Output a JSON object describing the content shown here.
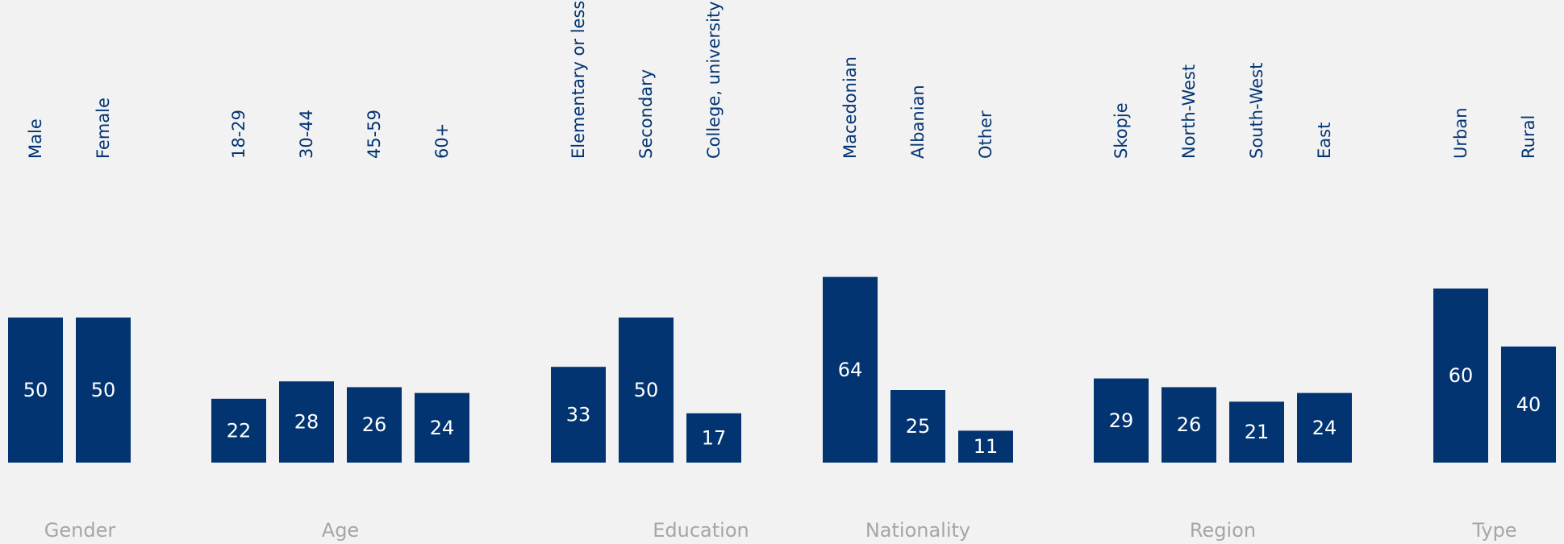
{
  "chart_data": {
    "type": "bar",
    "bar_color": "#033472",
    "value_label_color": "#ffffff",
    "category_label_color": "#033472",
    "group_label_color": "#a6a6a6",
    "background_color": "#f2f2f2",
    "ylim": [
      0,
      100
    ],
    "groups": [
      {
        "name": "Gender",
        "categories": [
          "Male",
          "Female"
        ],
        "values": [
          50,
          50
        ]
      },
      {
        "name": "Age",
        "categories": [
          "18-29",
          "30-44",
          "45-59",
          "60+"
        ],
        "values": [
          22,
          28,
          26,
          24
        ]
      },
      {
        "name": "Education",
        "categories": [
          "Elementary or less",
          "Secondary",
          "College, university"
        ],
        "values": [
          33,
          50,
          17
        ]
      },
      {
        "name": "Nationality",
        "categories": [
          "Macedonian",
          "Albanian",
          "Other"
        ],
        "values": [
          64,
          25,
          11
        ]
      },
      {
        "name": "Region",
        "categories": [
          "Skopje",
          "North-West",
          "South-West",
          "East"
        ],
        "values": [
          29,
          26,
          21,
          24
        ]
      },
      {
        "name": "Type",
        "categories": [
          "Urban",
          "Rural"
        ],
        "values": [
          60,
          40
        ]
      }
    ]
  }
}
